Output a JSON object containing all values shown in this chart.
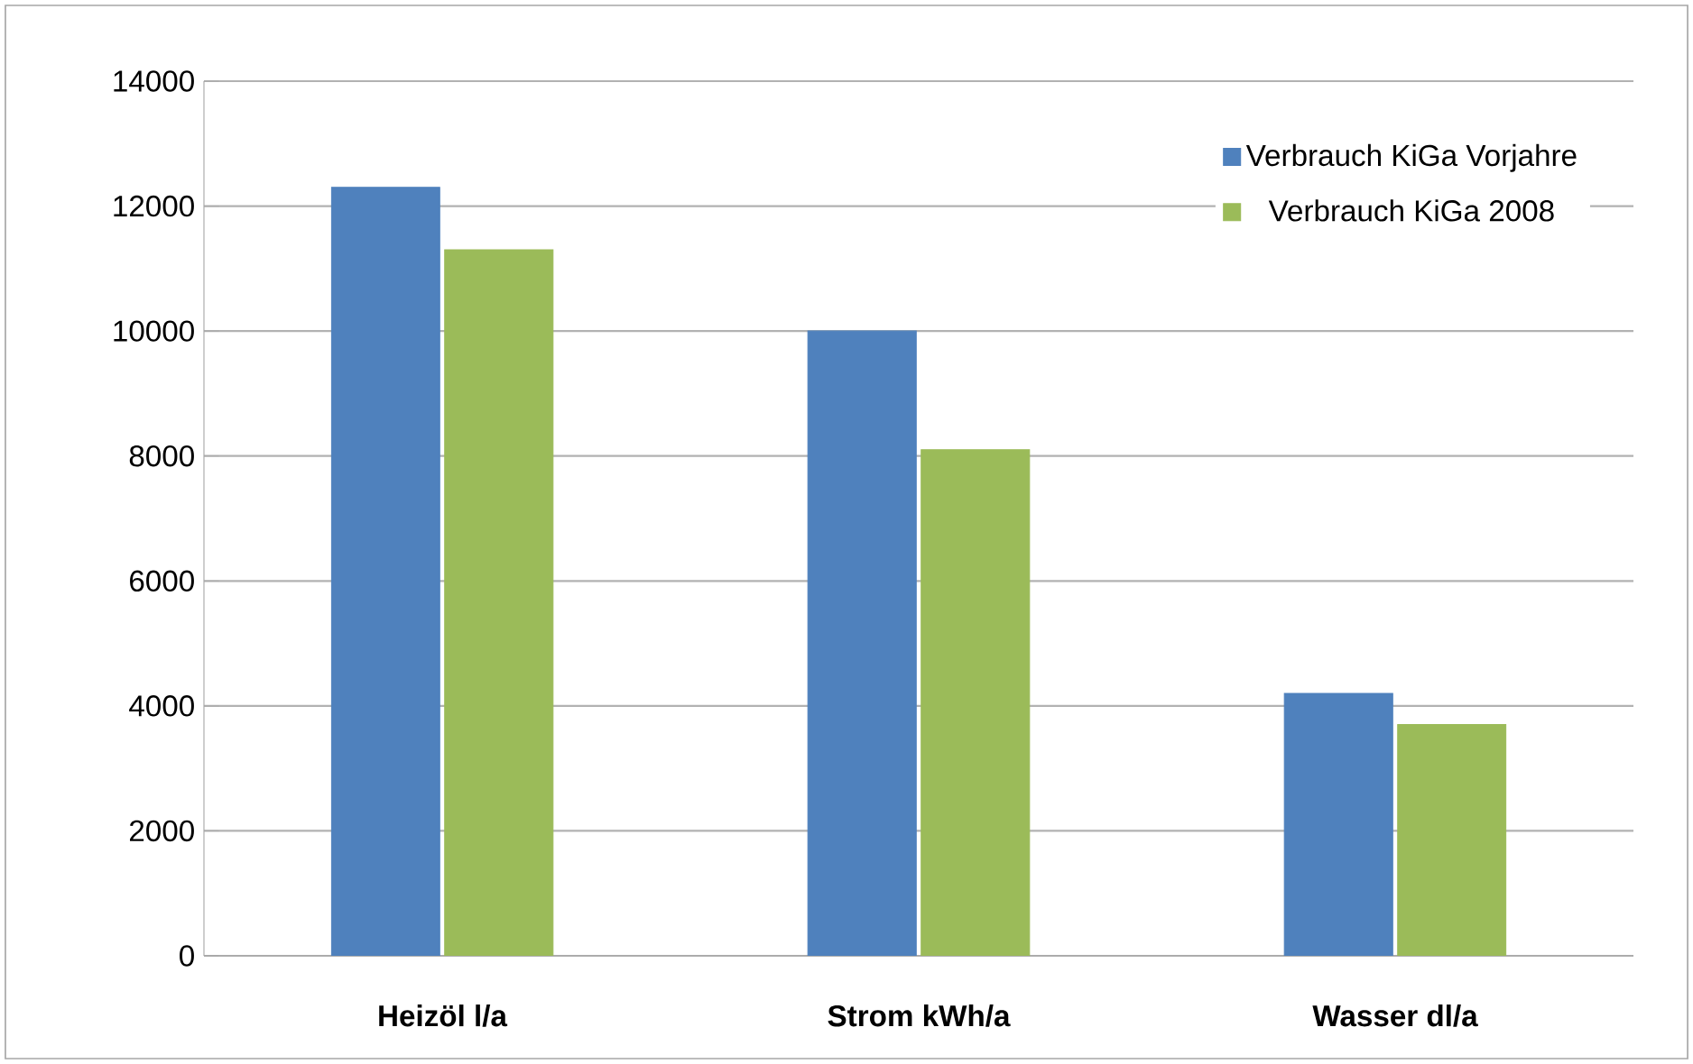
{
  "chart_data": {
    "type": "bar",
    "categories": [
      "Heizöl  l/a",
      "Strom kWh/a",
      "Wasser dl/a"
    ],
    "series": [
      {
        "name": "Verbrauch KiGa Vorjahre",
        "color": "#4f81bd",
        "values": [
          12300,
          10000,
          4200
        ]
      },
      {
        "name": "Verbrauch KiGa 2008",
        "color": "#9bbb59",
        "values": [
          11300,
          8100,
          3700
        ]
      }
    ],
    "ylim": [
      0,
      14000
    ],
    "yticks": [
      0,
      2000,
      4000,
      6000,
      8000,
      10000,
      12000,
      14000
    ],
    "grid": "y",
    "legend": "top right"
  }
}
